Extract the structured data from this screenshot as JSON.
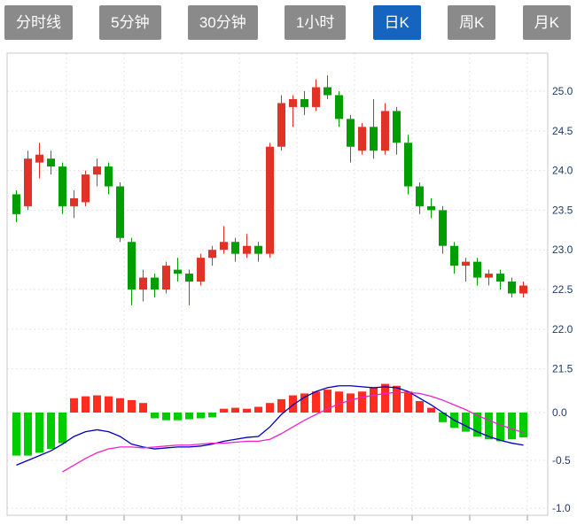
{
  "toolbar": {
    "active_color": "#1565c0",
    "inactive_color": "#8a8a8a",
    "tabs": [
      {
        "label": "分时线",
        "active": false
      },
      {
        "label": "5分钟",
        "active": false
      },
      {
        "label": "30分钟",
        "active": false
      },
      {
        "label": "1小时",
        "active": false
      },
      {
        "label": "日K",
        "active": true
      },
      {
        "label": "周K",
        "active": false
      },
      {
        "label": "月K",
        "active": false
      }
    ]
  },
  "chart_data": {
    "type": "candlestick",
    "panes": [
      "price",
      "macd"
    ],
    "price_axis": {
      "ticks": [
        25.0,
        24.5,
        24.0,
        23.5,
        23.0,
        22.5,
        22.0,
        21.5
      ],
      "labels": [
        "25.0",
        "24.5",
        "24.0",
        "23.5",
        "23.0",
        "22.5",
        "22.0",
        "21.5"
      ],
      "range": [
        21.3,
        25.5
      ]
    },
    "macd_axis": {
      "ticks": [
        0.0,
        -0.5,
        -1.0
      ],
      "labels": [
        "0.0",
        "-0.5",
        "-1.0"
      ],
      "range": [
        -1.1,
        0.4
      ]
    },
    "colors": {
      "up": "#e03226",
      "down": "#009e00",
      "macd_hist_up": "#ff2d1f",
      "macd_hist_down": "#00cc00",
      "dif_line": "#0000bb",
      "dea_line": "#ee22cc",
      "grid": "#e3e3e3",
      "border": "#c8c8c8",
      "tick": "#999999",
      "axis_text": "#1f3b63"
    },
    "candles_format": "[open, high, low, close]",
    "candles": [
      [
        23.7,
        23.75,
        23.35,
        23.45
      ],
      [
        23.55,
        24.25,
        23.5,
        24.15
      ],
      [
        24.1,
        24.35,
        23.9,
        24.2
      ],
      [
        24.15,
        24.25,
        23.95,
        24.05
      ],
      [
        24.05,
        24.1,
        23.45,
        23.55
      ],
      [
        23.55,
        23.75,
        23.4,
        23.65
      ],
      [
        23.6,
        24.0,
        23.55,
        23.95
      ],
      [
        23.95,
        24.15,
        23.8,
        24.05
      ],
      [
        24.05,
        24.1,
        23.7,
        23.8
      ],
      [
        23.8,
        23.85,
        23.1,
        23.15
      ],
      [
        23.1,
        23.15,
        22.3,
        22.5
      ],
      [
        22.5,
        22.75,
        22.35,
        22.65
      ],
      [
        22.65,
        22.7,
        22.4,
        22.5
      ],
      [
        22.5,
        22.85,
        22.45,
        22.8
      ],
      [
        22.75,
        22.9,
        22.6,
        22.7
      ],
      [
        22.7,
        22.75,
        22.3,
        22.6
      ],
      [
        22.6,
        22.95,
        22.55,
        22.9
      ],
      [
        22.9,
        23.05,
        22.8,
        23.0
      ],
      [
        23.0,
        23.3,
        22.95,
        23.1
      ],
      [
        23.1,
        23.15,
        22.85,
        22.95
      ],
      [
        22.95,
        23.2,
        22.9,
        23.05
      ],
      [
        23.05,
        23.1,
        22.85,
        22.95
      ],
      [
        22.95,
        24.35,
        22.9,
        24.3
      ],
      [
        24.3,
        24.95,
        24.25,
        24.85
      ],
      [
        24.8,
        24.95,
        24.55,
        24.9
      ],
      [
        24.9,
        25.0,
        24.7,
        24.8
      ],
      [
        24.8,
        25.15,
        24.75,
        25.05
      ],
      [
        25.05,
        25.2,
        24.9,
        24.95
      ],
      [
        24.95,
        25.0,
        24.55,
        24.65
      ],
      [
        24.65,
        24.7,
        24.1,
        24.3
      ],
      [
        24.25,
        24.6,
        24.2,
        24.55
      ],
      [
        24.55,
        24.9,
        24.15,
        24.25
      ],
      [
        24.25,
        24.85,
        24.2,
        24.75
      ],
      [
        24.75,
        24.8,
        24.2,
        24.35
      ],
      [
        24.35,
        24.45,
        23.7,
        23.8
      ],
      [
        23.8,
        23.85,
        23.45,
        23.55
      ],
      [
        23.55,
        23.65,
        23.4,
        23.5
      ],
      [
        23.5,
        23.55,
        22.95,
        23.05
      ],
      [
        23.05,
        23.1,
        22.7,
        22.8
      ],
      [
        22.8,
        22.9,
        22.6,
        22.85
      ],
      [
        22.85,
        22.9,
        22.55,
        22.65
      ],
      [
        22.65,
        22.75,
        22.55,
        22.7
      ],
      [
        22.7,
        22.75,
        22.5,
        22.6
      ],
      [
        22.6,
        22.65,
        22.4,
        22.45
      ],
      [
        22.45,
        22.6,
        22.4,
        22.55
      ]
    ],
    "macd": {
      "hist": [
        -0.45,
        -0.45,
        -0.42,
        -0.38,
        -0.32,
        0.15,
        0.17,
        0.18,
        0.17,
        0.15,
        0.13,
        0.1,
        -0.06,
        -0.08,
        -0.08,
        -0.07,
        -0.06,
        -0.05,
        0.04,
        0.05,
        0.04,
        0.06,
        0.1,
        0.14,
        0.18,
        0.2,
        0.22,
        0.24,
        0.22,
        0.2,
        0.22,
        0.26,
        0.3,
        0.28,
        0.22,
        0.12,
        0.05,
        -0.1,
        -0.16,
        -0.2,
        -0.25,
        -0.28,
        -0.3,
        -0.28,
        -0.26
      ],
      "dif": [
        -0.55,
        -0.5,
        -0.45,
        -0.4,
        -0.33,
        -0.25,
        -0.2,
        -0.18,
        -0.2,
        -0.25,
        -0.33,
        -0.36,
        -0.38,
        -0.37,
        -0.36,
        -0.36,
        -0.35,
        -0.33,
        -0.3,
        -0.28,
        -0.26,
        -0.25,
        -0.15,
        -0.02,
        0.08,
        0.16,
        0.22,
        0.26,
        0.28,
        0.28,
        0.27,
        0.26,
        0.27,
        0.26,
        0.22,
        0.15,
        0.08,
        0.0,
        -0.08,
        -0.14,
        -0.2,
        -0.25,
        -0.29,
        -0.32,
        -0.34
      ],
      "dea": [
        null,
        null,
        null,
        null,
        -0.62,
        -0.55,
        -0.48,
        -0.42,
        -0.38,
        -0.36,
        -0.36,
        -0.37,
        -0.36,
        -0.35,
        -0.34,
        -0.34,
        -0.33,
        -0.32,
        -0.32,
        -0.31,
        -0.3,
        -0.3,
        -0.28,
        -0.22,
        -0.15,
        -0.08,
        -0.02,
        0.04,
        0.09,
        0.13,
        0.16,
        0.18,
        0.2,
        0.21,
        0.21,
        0.2,
        0.17,
        0.13,
        0.08,
        0.03,
        -0.03,
        -0.08,
        -0.13,
        -0.17,
        -0.21
      ]
    }
  }
}
